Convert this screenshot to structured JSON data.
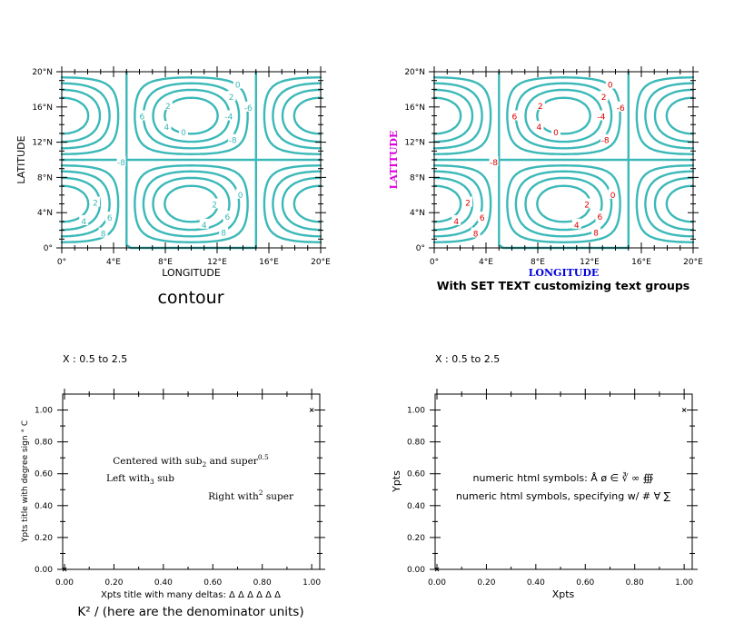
{
  "chart_data": [
    {
      "type": "contour",
      "xlabel": "LONGITUDE",
      "ylabel": "LATITUDE",
      "x_ticks": [
        "0°",
        "4°E",
        "8°E",
        "12°E",
        "16°E",
        "20°E"
      ],
      "y_ticks": [
        "0°",
        "4°N",
        "8°N",
        "12°N",
        "16°N",
        "20°N"
      ],
      "xlim": [
        0,
        20
      ],
      "ylim": [
        0,
        20
      ],
      "contour_levels": [
        -8,
        -6,
        -4,
        -2,
        0,
        2,
        4,
        6,
        8
      ],
      "contour_labels": [
        "0",
        "2",
        "4",
        "6",
        "8",
        "-2",
        "-4",
        "-6",
        "-8",
        "0"
      ],
      "line_color": "#3bb8b8",
      "label_color": "#3bb8b8",
      "caption": "contour"
    },
    {
      "type": "contour",
      "xlabel": "LONGITUDE",
      "ylabel": "LATITUDE",
      "x_ticks": [
        "0°",
        "4°E",
        "8°E",
        "12°E",
        "16°E",
        "20°E"
      ],
      "y_ticks": [
        "0°",
        "4°N",
        "8°N",
        "12°N",
        "16°N",
        "20°N"
      ],
      "xlim": [
        0,
        20
      ],
      "ylim": [
        0,
        20
      ],
      "contour_levels": [
        -8,
        -6,
        -4,
        -2,
        0,
        2,
        4,
        6,
        8
      ],
      "contour_labels": [
        "0",
        "2",
        "4",
        "6",
        "8",
        "-2",
        "-4",
        "-6",
        "-8",
        "0"
      ],
      "line_color": "#3bb8b8",
      "label_color": "#e00000",
      "xlabel_color": "#0000dd",
      "ylabel_color": "#dd00dd",
      "caption": "With SET TEXT customizing text groups"
    },
    {
      "type": "scatter",
      "header": "X : 0.5 to 2.5",
      "x_ticks": [
        "0.00",
        "0.20",
        "0.40",
        "0.60",
        "0.80",
        "1.00"
      ],
      "y_ticks": [
        "0.00",
        "0.20",
        "0.40",
        "0.60",
        "0.80",
        "1.00"
      ],
      "xlim": [
        0,
        1.04
      ],
      "ylim": [
        0,
        1.1
      ],
      "points": [
        [
          0,
          0
        ],
        [
          1,
          1
        ]
      ],
      "xlabel": "Xpts title with many deltas: Δ Δ Δ Δ Δ Δ",
      "ylabel": "Ypts title with degree sign ° C",
      "caption": "K² / (here are the denominator units)",
      "annotations": [
        {
          "text": "Centered with sub",
          "sub": "2",
          "mid": " and super",
          "sup": "0.5"
        },
        {
          "text": "Left with",
          "sub": "3",
          "mid": " sub",
          "sup": ""
        },
        {
          "text": "Right with",
          "sup": "2",
          "mid": " super",
          "sub": ""
        }
      ]
    },
    {
      "type": "scatter",
      "header": "X : 0.5 to 2.5",
      "x_ticks": [
        "0.00",
        "0.20",
        "0.40",
        "0.60",
        "0.80",
        "1.00"
      ],
      "y_ticks": [
        "0.00",
        "0.20",
        "0.40",
        "0.60",
        "0.80",
        "1.00"
      ],
      "xlim": [
        0,
        1.04
      ],
      "ylim": [
        0,
        1.1
      ],
      "points": [
        [
          0,
          0
        ],
        [
          1,
          1
        ]
      ],
      "xlabel": "Xpts",
      "ylabel": "Ypts",
      "annotations": [
        {
          "text": "numeric html symbols: Å ø ∈ ∛ ∞ ∰"
        },
        {
          "text": "numeric html symbols, specifying w/ #   ∀ ∑"
        }
      ]
    }
  ]
}
